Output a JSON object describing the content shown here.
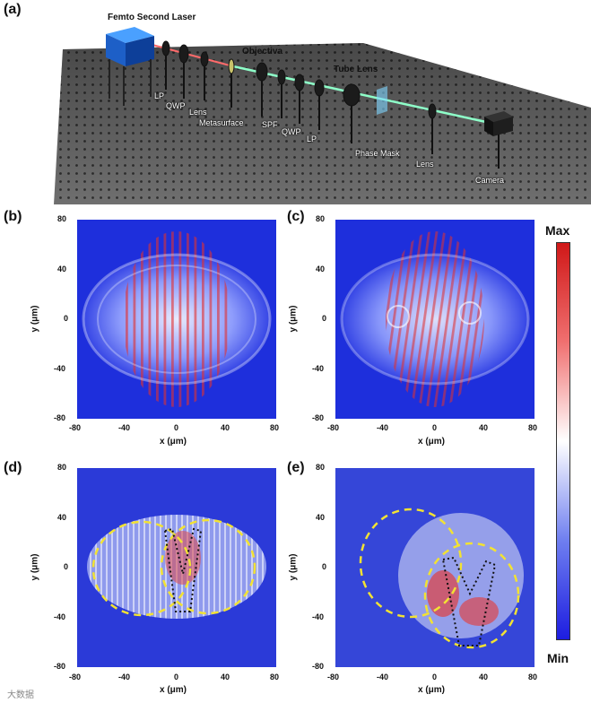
{
  "panels": {
    "a": "(a)",
    "b": "(b)",
    "c": "(c)",
    "d": "(d)",
    "e": "(e)"
  },
  "setup": {
    "labels": {
      "laser": "Femto Second Laser",
      "objective": "Objectiva",
      "tube_lens": "Tube Lens",
      "lp1": "LP",
      "qwp1": "QWP",
      "lens1": "Lens",
      "metasurface": "Metasurface",
      "spf": "SPF",
      "qwp2": "QWP",
      "lp2": "LP",
      "phase_mask": "Phase Mask",
      "lens2": "Lens",
      "camera": "Camera"
    }
  },
  "axes": {
    "xlabel": "x (μm)",
    "ylabel": "y (μm)",
    "xticks": [
      "-80",
      "-40",
      "0",
      "40",
      "80"
    ],
    "yticks": [
      "80",
      "40",
      "0",
      "-40",
      "-80"
    ]
  },
  "colorbar": {
    "max_label": "Max",
    "min_label": "Min",
    "colors": [
      "#1d1de0",
      "#6f7ff0",
      "#ffffff",
      "#f07070",
      "#d01818"
    ]
  },
  "watermark": "大数据"
}
